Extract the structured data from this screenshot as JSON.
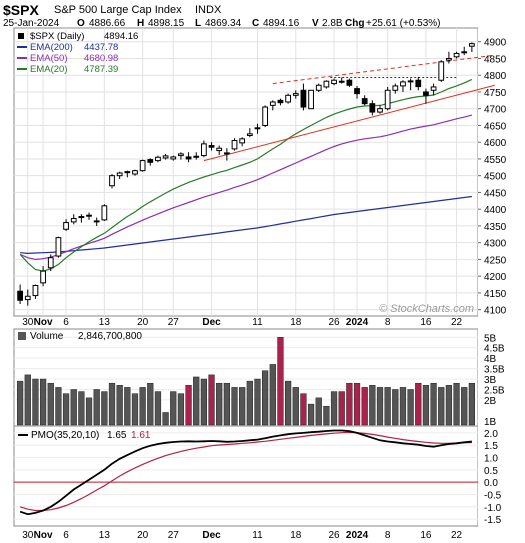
{
  "header": {
    "symbol": "$SPX",
    "name": "S&P 500 Large Cap Index",
    "exchange": "INDX",
    "date": "25-Jan-2024",
    "o_label": "O",
    "o_value": "4886.66",
    "h_label": "H",
    "h_value": "4898.15",
    "l_label": "L",
    "l_value": "4869.34",
    "c_label": "C",
    "c_value": "4894.16",
    "v_label": "V",
    "v_value": "2.8B",
    "chg_label": "Chg",
    "chg_value": "+25.61 (+0.53%)"
  },
  "watermark": "© StockCharts.com",
  "colors": {
    "up": "#000000",
    "down": "#000000",
    "ema200": "#1f2f9c",
    "ema50": "#8b2fb5",
    "ema20": "#2a7a2a",
    "trendline": "#e0301e",
    "volume_up": "#555555",
    "volume_down": "#a8244e",
    "pmo": "#000000",
    "pmo_signal": "#b0243f",
    "zero_line": "#c0141e"
  },
  "chart_data": {
    "type": "candlestick",
    "title": "$SPX S&P 500 Large Cap Index INDX",
    "legend": [
      {
        "label": "$SPX (Daily)",
        "value": "4894.16",
        "color": "#000000"
      },
      {
        "label": "EMA(200)",
        "value": "4437.78",
        "color": "#1f2f9c"
      },
      {
        "label": "EMA(50)",
        "value": "4680.98",
        "color": "#8b2fb5"
      },
      {
        "label": "EMA(20)",
        "value": "4787.39",
        "color": "#2a7a2a"
      }
    ],
    "x_ticks": [
      {
        "i": 1,
        "label": "30"
      },
      {
        "i": 3,
        "label": "Nov"
      },
      {
        "i": 6,
        "label": "6"
      },
      {
        "i": 11,
        "label": "13"
      },
      {
        "i": 16,
        "label": "20"
      },
      {
        "i": 20,
        "label": "27"
      },
      {
        "i": 25,
        "label": "Dec"
      },
      {
        "i": 31,
        "label": "11"
      },
      {
        "i": 36,
        "label": "18"
      },
      {
        "i": 41,
        "label": "26"
      },
      {
        "i": 44,
        "label": "2024"
      },
      {
        "i": 48,
        "label": "8"
      },
      {
        "i": 53,
        "label": "16"
      },
      {
        "i": 57,
        "label": "22"
      }
    ],
    "price_axis": {
      "ticks": [
        4100,
        4150,
        4200,
        4250,
        4300,
        4350,
        4400,
        4450,
        4500,
        4550,
        4600,
        4650,
        4700,
        4750,
        4800,
        4850,
        4900
      ],
      "range": [
        4087,
        4935
      ]
    },
    "candles": [
      [
        4155,
        4175,
        4117,
        4128
      ],
      [
        4130,
        4160,
        4112,
        4140
      ],
      [
        4142,
        4175,
        4132,
        4172
      ],
      [
        4180,
        4230,
        4170,
        4215
      ],
      [
        4225,
        4265,
        4215,
        4255
      ],
      [
        4260,
        4318,
        4255,
        4315
      ],
      [
        4340,
        4370,
        4335,
        4360
      ],
      [
        4362,
        4385,
        4355,
        4372
      ],
      [
        4375,
        4385,
        4360,
        4378
      ],
      [
        4380,
        4390,
        4368,
        4382
      ],
      [
        4365,
        4375,
        4350,
        4365
      ],
      [
        4368,
        4415,
        4365,
        4410
      ],
      [
        4470,
        4505,
        4462,
        4500
      ],
      [
        4500,
        4512,
        4490,
        4508
      ],
      [
        4510,
        4515,
        4495,
        4512
      ],
      [
        4505,
        4518,
        4500,
        4515
      ],
      [
        4515,
        4548,
        4512,
        4545
      ],
      [
        4548,
        4552,
        4530,
        4540
      ],
      [
        4545,
        4560,
        4540,
        4555
      ],
      [
        4553,
        4565,
        4548,
        4559
      ],
      [
        4550,
        4560,
        4545,
        4556
      ],
      [
        4560,
        4570,
        4548,
        4565
      ],
      [
        4556,
        4570,
        4540,
        4550
      ],
      [
        4555,
        4570,
        4548,
        4558
      ],
      [
        4560,
        4605,
        4555,
        4595
      ],
      [
        4590,
        4600,
        4575,
        4585
      ],
      [
        4575,
        4590,
        4562,
        4582
      ],
      [
        4565,
        4582,
        4545,
        4568
      ],
      [
        4580,
        4612,
        4575,
        4605
      ],
      [
        4598,
        4615,
        4588,
        4610
      ],
      [
        4620,
        4642,
        4615,
        4625
      ],
      [
        4640,
        4655,
        4625,
        4643
      ],
      [
        4650,
        4710,
        4645,
        4705
      ],
      [
        4710,
        4725,
        4695,
        4720
      ],
      [
        4725,
        4730,
        4710,
        4718
      ],
      [
        4720,
        4745,
        4715,
        4740
      ],
      [
        4740,
        4755,
        4730,
        4745
      ],
      [
        4755,
        4775,
        4695,
        4705
      ],
      [
        4700,
        4755,
        4700,
        4755
      ],
      [
        4755,
        4775,
        4750,
        4770
      ],
      [
        4765,
        4785,
        4760,
        4782
      ],
      [
        4775,
        4790,
        4770,
        4785
      ],
      [
        4782,
        4793,
        4775,
        4782
      ],
      [
        4785,
        4790,
        4765,
        4770
      ],
      [
        4760,
        4768,
        4730,
        4745
      ],
      [
        4730,
        4740,
        4710,
        4715
      ],
      [
        4715,
        4725,
        4680,
        4690
      ],
      [
        4690,
        4710,
        4685,
        4700
      ],
      [
        4700,
        4765,
        4695,
        4755
      ],
      [
        4755,
        4775,
        4745,
        4768
      ],
      [
        4768,
        4785,
        4750,
        4780
      ],
      [
        4780,
        4790,
        4755,
        4783
      ],
      [
        4785,
        4795,
        4755,
        4766
      ],
      [
        4750,
        4760,
        4715,
        4740
      ],
      [
        4755,
        4775,
        4740,
        4765
      ],
      [
        4785,
        4845,
        4780,
        4840
      ],
      [
        4845,
        4870,
        4835,
        4850
      ],
      [
        4855,
        4870,
        4850,
        4865
      ],
      [
        4870,
        4885,
        4860,
        4868
      ],
      [
        4886.66,
        4898.15,
        4869.34,
        4894.16
      ]
    ],
    "ema200": [
      4270,
      4268,
      4269,
      4270,
      4271,
      4272,
      4274,
      4276,
      4278,
      4280,
      4282,
      4284,
      4287,
      4290,
      4293,
      4296,
      4299,
      4302,
      4305,
      4308,
      4311,
      4314,
      4317,
      4320,
      4323,
      4326,
      4329,
      4332,
      4335,
      4338,
      4341,
      4344,
      4348,
      4352,
      4356,
      4360,
      4364,
      4368,
      4372,
      4376,
      4380,
      4384,
      4387,
      4390,
      4393,
      4396,
      4399,
      4402,
      4405,
      4408,
      4411,
      4414,
      4417,
      4420,
      4423,
      4426,
      4429,
      4432,
      4435,
      4437.78
    ],
    "ema50": [
      4265,
      4255,
      4250,
      4252,
      4257,
      4264,
      4273,
      4282,
      4290,
      4298,
      4305,
      4313,
      4325,
      4336,
      4347,
      4357,
      4367,
      4377,
      4386,
      4395,
      4404,
      4412,
      4420,
      4428,
      4436,
      4443,
      4450,
      4457,
      4465,
      4472,
      4480,
      4488,
      4498,
      4508,
      4518,
      4528,
      4538,
      4548,
      4558,
      4568,
      4578,
      4587,
      4595,
      4601,
      4606,
      4610,
      4613,
      4616,
      4621,
      4627,
      4633,
      4639,
      4644,
      4648,
      4652,
      4658,
      4664,
      4670,
      4675,
      4680.98
    ],
    "ema20": [
      4265,
      4240,
      4220,
      4215,
      4222,
      4235,
      4255,
      4272,
      4288,
      4303,
      4316,
      4328,
      4345,
      4362,
      4378,
      4392,
      4408,
      4422,
      4435,
      4448,
      4460,
      4470,
      4480,
      4488,
      4496,
      4503,
      4510,
      4516,
      4524,
      4532,
      4540,
      4550,
      4565,
      4580,
      4594,
      4610,
      4625,
      4638,
      4650,
      4662,
      4674,
      4684,
      4692,
      4699,
      4705,
      4708,
      4709,
      4710,
      4715,
      4721,
      4727,
      4732,
      4736,
      4738,
      4741,
      4750,
      4760,
      4768,
      4777,
      4787.39
    ],
    "trend_lines": [
      {
        "x0": 24,
        "y0": 4545,
        "x1": 62,
        "y1": 4770,
        "color": "#e0301e",
        "style": "solid"
      },
      {
        "x0": 33,
        "y0": 4775,
        "x1": 62,
        "y1": 4860,
        "color": "#e0301e",
        "style": "dashed"
      },
      {
        "x0": 40.5,
        "y0": 4793,
        "x1": 57,
        "y1": 4793,
        "color": "#1f2f9c",
        "style": "dotted"
      }
    ],
    "volume": {
      "label": "Volume",
      "value": "2,846,700,800",
      "ticks": [
        {
          "v": 1.0,
          "label": "1B"
        },
        {
          "v": 2.0,
          "label": "2B"
        },
        {
          "v": 2.5,
          "label": "2.5B"
        },
        {
          "v": 3.0,
          "label": "3B"
        },
        {
          "v": 3.5,
          "label": "3.5B"
        },
        {
          "v": 4.0,
          "label": "4B"
        },
        {
          "v": 4.5,
          "label": "4.5B"
        },
        {
          "v": 5.0,
          "label": "5B"
        }
      ],
      "range": [
        0.8,
        5.3
      ],
      "values": [
        2.9,
        3.2,
        3.0,
        3.0,
        2.8,
        2.6,
        2.3,
        2.5,
        2.4,
        2.1,
        2.5,
        2.4,
        2.8,
        2.7,
        2.6,
        2.3,
        2.6,
        2.8,
        2.4,
        1.4,
        2.4,
        2.3,
        2.7,
        3.1,
        3.0,
        3.2,
        2.8,
        2.8,
        2.6,
        2.6,
        2.9,
        3.0,
        3.4,
        3.7,
        5.0,
        2.9,
        2.6,
        2.3,
        1.8,
        2.1,
        1.7,
        2.4,
        2.4,
        2.8,
        2.8,
        2.6,
        2.7,
        2.6,
        2.6,
        2.5,
        2.6,
        2.5,
        2.8,
        2.7,
        2.8,
        2.6,
        2.7,
        2.8,
        2.6,
        2.8
      ],
      "down": [
        0,
        0,
        0,
        0,
        0,
        0,
        0,
        0,
        0,
        0,
        0,
        0,
        0,
        0,
        0,
        0,
        0,
        0,
        0,
        0,
        0,
        0,
        1,
        0,
        0,
        1,
        0,
        0,
        0,
        0,
        0,
        0,
        0,
        0,
        1,
        0,
        0,
        1,
        0,
        0,
        0,
        0,
        1,
        1,
        1,
        1,
        0,
        0,
        0,
        0,
        0,
        0,
        1,
        0,
        0,
        0,
        0,
        0,
        0,
        0
      ]
    },
    "pmo": {
      "label": "PMO(35,20,10)",
      "value": "1.65",
      "signal_value": "1.61",
      "ticks": [
        -1.5,
        -1.0,
        -0.5,
        0.0,
        0.5,
        1.0,
        1.5,
        2.0
      ],
      "range": [
        -1.7,
        2.2
      ],
      "values": [
        -1.2,
        -1.3,
        -1.25,
        -1.15,
        -1.0,
        -0.8,
        -0.55,
        -0.3,
        -0.1,
        0.1,
        0.3,
        0.5,
        0.75,
        0.95,
        1.1,
        1.25,
        1.38,
        1.48,
        1.55,
        1.6,
        1.63,
        1.65,
        1.66,
        1.65,
        1.66,
        1.67,
        1.66,
        1.64,
        1.65,
        1.67,
        1.7,
        1.73,
        1.78,
        1.85,
        1.9,
        1.95,
        1.98,
        2.0,
        2.03,
        2.05,
        2.08,
        2.1,
        2.1,
        2.07,
        2.0,
        1.9,
        1.8,
        1.7,
        1.65,
        1.62,
        1.58,
        1.55,
        1.52,
        1.47,
        1.44,
        1.5,
        1.55,
        1.58,
        1.62,
        1.65
      ],
      "signal": [
        -1.0,
        -1.1,
        -1.15,
        -1.15,
        -1.12,
        -1.05,
        -0.95,
        -0.82,
        -0.67,
        -0.5,
        -0.32,
        -0.15,
        0.05,
        0.25,
        0.42,
        0.58,
        0.72,
        0.85,
        0.97,
        1.08,
        1.17,
        1.25,
        1.32,
        1.38,
        1.43,
        1.48,
        1.51,
        1.53,
        1.55,
        1.58,
        1.6,
        1.63,
        1.66,
        1.7,
        1.74,
        1.78,
        1.82,
        1.86,
        1.9,
        1.93,
        1.96,
        1.99,
        2.01,
        2.02,
        2.01,
        1.98,
        1.94,
        1.89,
        1.83,
        1.78,
        1.73,
        1.69,
        1.65,
        1.62,
        1.59,
        1.58,
        1.58,
        1.59,
        1.6,
        1.61
      ]
    }
  }
}
